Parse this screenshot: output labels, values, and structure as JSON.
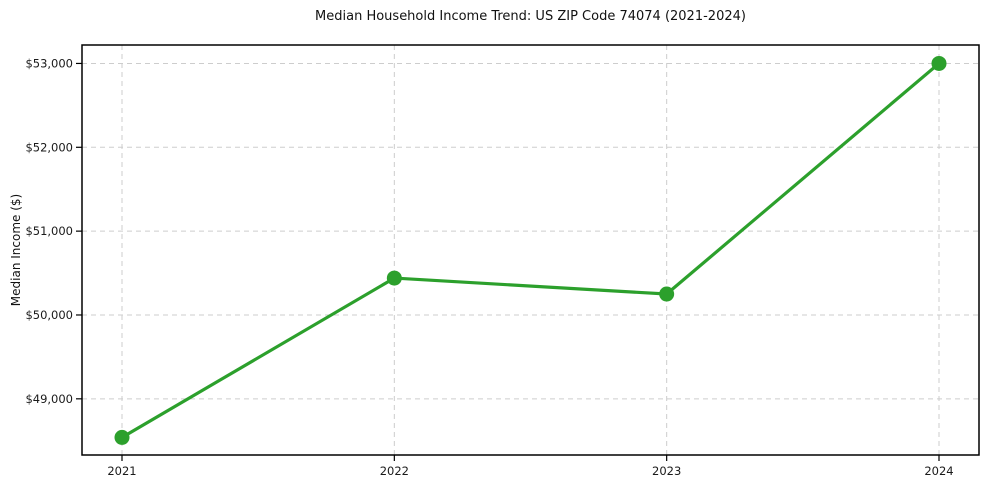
{
  "figure": {
    "background": "#ffffff"
  },
  "chart_data": {
    "type": "line",
    "title": "Median Household Income Trend: US ZIP Code 74074 (2021-2024)",
    "xlabel": "",
    "ylabel": "Median Income ($)",
    "categories": [
      "2021",
      "2022",
      "2023",
      "2024"
    ],
    "series": [
      {
        "name": "Median Household Income",
        "values": [
          48540,
          50440,
          50250,
          53000
        ],
        "color": "#2ca02c",
        "marker": "circle"
      }
    ],
    "ylim": [
      48330,
      53220
    ],
    "yticks": [
      49000,
      50000,
      51000,
      52000,
      53000
    ],
    "ytick_labels": [
      "$49,000",
      "$50,000",
      "$51,000",
      "$52,000",
      "$53,000"
    ],
    "xtick_labels": [
      "2021",
      "2022",
      "2023",
      "2024"
    ],
    "grid": {
      "visible": true,
      "style": "dashed",
      "color": "#cdcdcd"
    },
    "legend_position": "none",
    "axis_color": "#000000",
    "text_color": "#1a1a1a"
  }
}
